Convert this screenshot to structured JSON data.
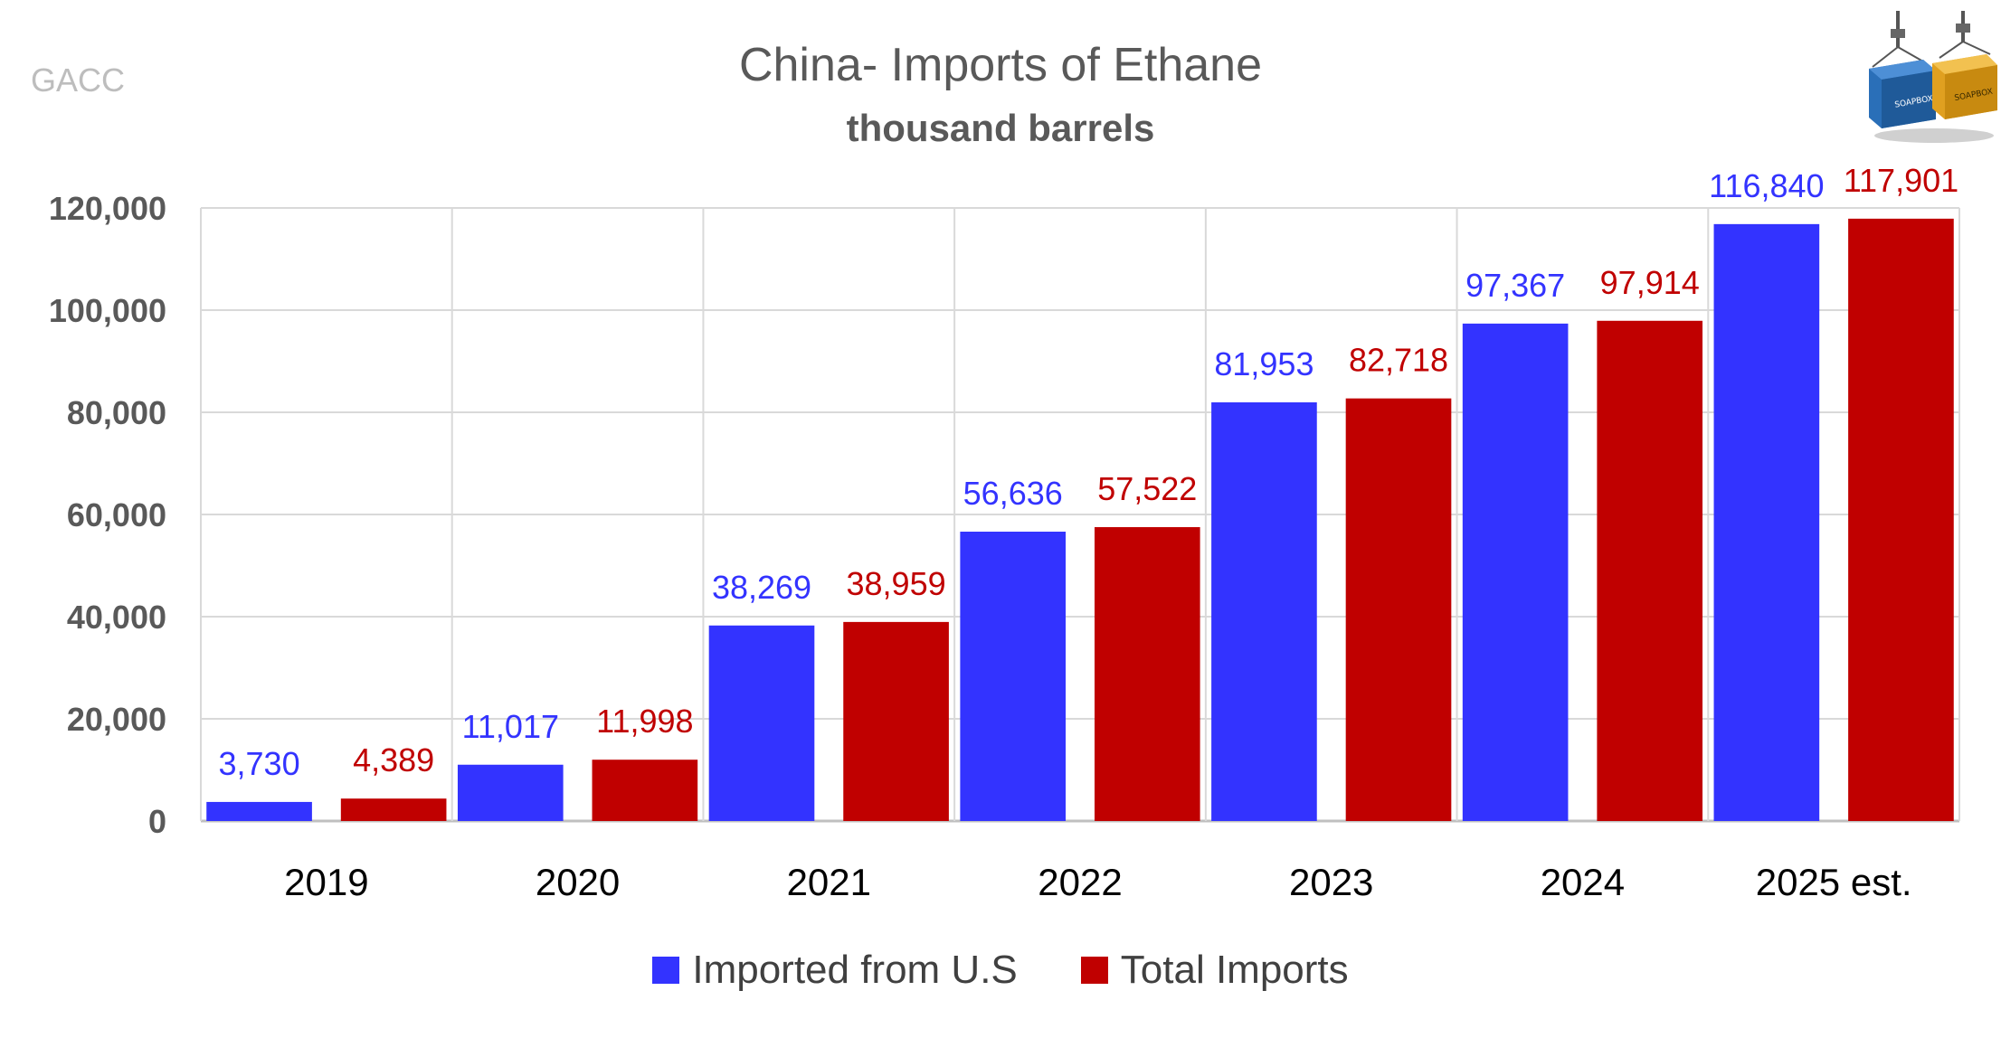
{
  "source": "GACC",
  "chart_data": {
    "type": "bar",
    "title": "China- Imports of Ethane",
    "subtitle": "thousand barrels",
    "xlabel": "",
    "ylabel": "",
    "categories": [
      "2019",
      "2020",
      "2021",
      "2022",
      "2023",
      "2024",
      "2025 est."
    ],
    "series": [
      {
        "name": "Imported from U.S",
        "color": "#3333ff",
        "values": [
          3730,
          11017,
          38269,
          56636,
          81953,
          97367,
          116840
        ],
        "labels": [
          "3,730",
          "11,017",
          "38,269",
          "56,636",
          "81,953",
          "97,367",
          "116,840"
        ]
      },
      {
        "name": "Total Imports",
        "color": "#c00000",
        "values": [
          4389,
          11998,
          38959,
          57522,
          82718,
          97914,
          117901
        ],
        "labels": [
          "4,389",
          "11,998",
          "38,959",
          "57,522",
          "82,718",
          "97,914",
          "117,901"
        ]
      }
    ],
    "ylim": [
      0,
      120000
    ],
    "yticks": [
      0,
      20000,
      40000,
      60000,
      80000,
      100000,
      120000
    ],
    "ytick_labels": [
      "0",
      "20,000",
      "40,000",
      "60,000",
      "80,000",
      "100,000",
      "120,000"
    ],
    "grid": true,
    "legend_position": "bottom"
  },
  "colors": {
    "grid": "#d9d9d9",
    "axis": "#bfbfbf",
    "tick_text": "#595959",
    "category_text": "#000000"
  },
  "logo": {
    "icon": "shipping-containers-icon",
    "text": "SOAPBOX"
  }
}
